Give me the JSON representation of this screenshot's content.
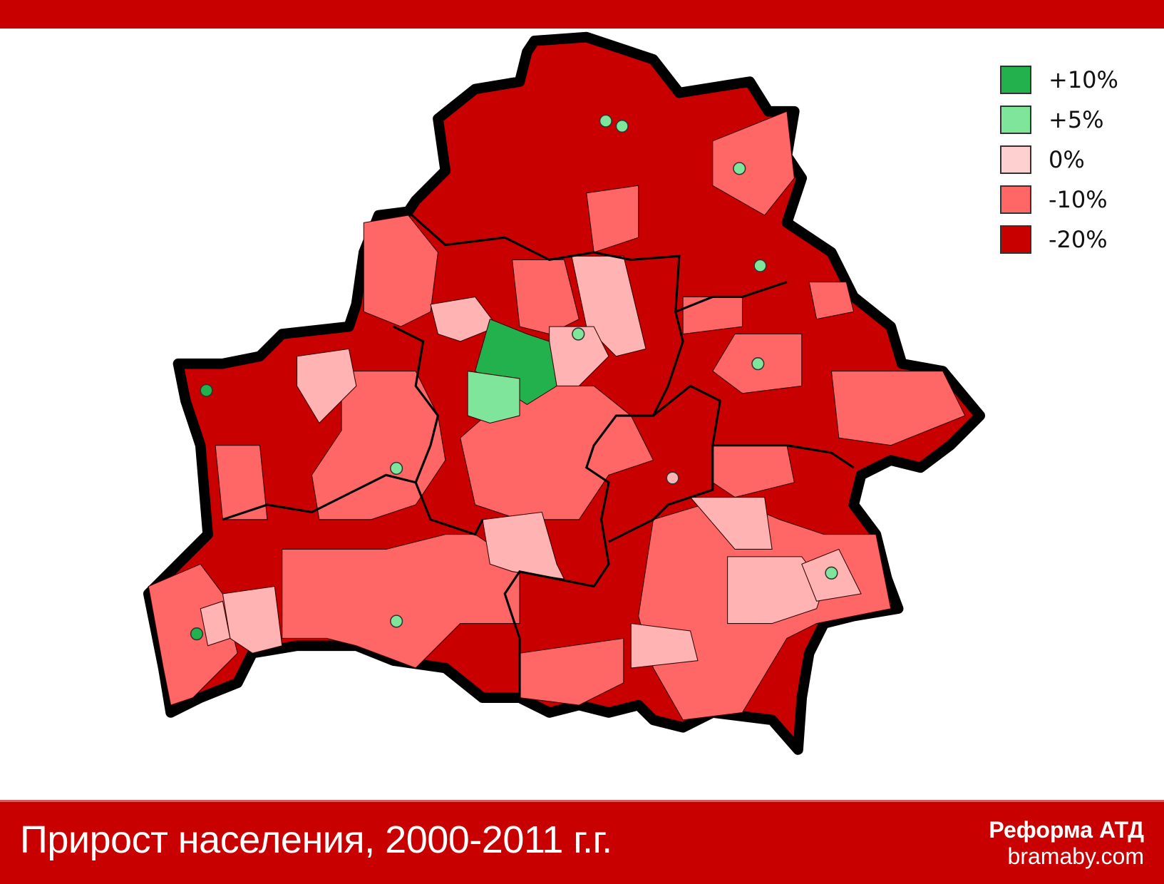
{
  "legend": [
    {
      "label": "+10%",
      "color": "#22b14c"
    },
    {
      "label": "+5%",
      "color": "#7fe59b"
    },
    {
      "label": "0%",
      "color": "#ffd0d0"
    },
    {
      "label": "-10%",
      "color": "#ff6666"
    },
    {
      "label": "-20%",
      "color": "#c80000"
    }
  ],
  "footer": {
    "title": "Прирост населения, 2000-2011 г.г.",
    "brand": "Реформа АТД",
    "site": "bramaby.com"
  },
  "colors": {
    "accent": "#c80000",
    "decline_strong": "#c80000",
    "decline": "#ff6666",
    "stable": "#ffb3b3",
    "growth": "#7fe59b",
    "growth_strong": "#22b14c"
  }
}
